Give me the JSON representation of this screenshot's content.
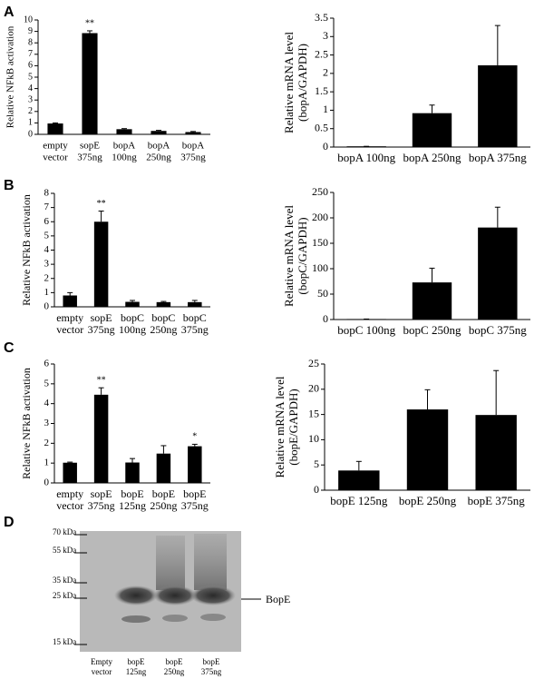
{
  "panels": [
    "A",
    "B",
    "C",
    "D"
  ],
  "chart_data": [
    {
      "type": "bar",
      "ylabel": [
        "Relative NFkB activation"
      ],
      "categories": [
        [
          "empty",
          "vector"
        ],
        [
          "sopE",
          "375ng"
        ],
        [
          "bopA",
          "100ng"
        ],
        [
          "bopA",
          "250ng"
        ],
        [
          "bopA",
          "375ng"
        ]
      ],
      "values": [
        0.95,
        8.85,
        0.45,
        0.3,
        0.2
      ],
      "errors": [
        0.05,
        0.2,
        0.05,
        0.05,
        0.05
      ],
      "significance": [
        null,
        "**",
        null,
        null,
        null
      ],
      "color": "#000000",
      "ylim": [
        0,
        10
      ],
      "yticks": [
        0,
        1,
        2,
        3,
        4,
        5,
        6,
        7,
        8,
        9,
        10
      ]
    },
    {
      "type": "bar",
      "ylabel": [
        "Relative mRNA level",
        "(bopA/GAPDH)"
      ],
      "categories": [
        [
          "bopA 100ng"
        ],
        [
          "bopA 250ng"
        ],
        [
          "bopA 375ng"
        ]
      ],
      "values": [
        0.02,
        0.92,
        2.22
      ],
      "errors": [
        0,
        0.22,
        1.08
      ],
      "color": "#000000",
      "ylim": [
        0,
        3.5
      ],
      "yticks": [
        0,
        0.5,
        1,
        1.5,
        2,
        2.5,
        3,
        3.5
      ]
    },
    {
      "type": "bar",
      "ylabel": [
        "Relative NFkB activation"
      ],
      "categories": [
        [
          "empty",
          "vector"
        ],
        [
          "sopE",
          "375ng"
        ],
        [
          "bopC",
          "100ng"
        ],
        [
          "bopC",
          "250ng"
        ],
        [
          "bopC",
          "375ng"
        ]
      ],
      "values": [
        0.8,
        6.0,
        0.35,
        0.33,
        0.33
      ],
      "errors": [
        0.2,
        0.75,
        0.1,
        0.05,
        0.12
      ],
      "significance": [
        null,
        "**",
        null,
        null,
        null
      ],
      "color": "#000000",
      "ylim": [
        0,
        8
      ],
      "yticks": [
        0,
        1,
        2,
        3,
        4,
        5,
        6,
        7,
        8
      ]
    },
    {
      "type": "bar",
      "ylabel": [
        "Relative mRNA level",
        "(bopC/GAPDH)"
      ],
      "categories": [
        [
          "bopC 100ng"
        ],
        [
          "bopC 250ng"
        ],
        [
          "bopC 375ng"
        ]
      ],
      "values": [
        1,
        73,
        181
      ],
      "errors": [
        0,
        28,
        40
      ],
      "color": "#000000",
      "ylim": [
        0,
        250
      ],
      "yticks": [
        0,
        50,
        100,
        150,
        200,
        250
      ]
    },
    {
      "type": "bar",
      "ylabel": [
        "Relative NFkB activation"
      ],
      "categories": [
        [
          "empty",
          "vector"
        ],
        [
          "sopE",
          "375ng"
        ],
        [
          "bopE",
          "125ng"
        ],
        [
          "bopE",
          "250ng"
        ],
        [
          "bopE",
          "375ng"
        ]
      ],
      "values": [
        1.02,
        4.45,
        1.03,
        1.48,
        1.85
      ],
      "errors": [
        0.03,
        0.35,
        0.2,
        0.4,
        0.1
      ],
      "significance": [
        null,
        "**",
        null,
        null,
        "*"
      ],
      "color": "#000000",
      "ylim": [
        0,
        6
      ],
      "yticks": [
        0,
        1,
        2,
        3,
        4,
        5,
        6
      ]
    },
    {
      "type": "bar",
      "ylabel": [
        "Relative mRNA level",
        "(bopE/GAPDH)"
      ],
      "categories": [
        [
          "bopE 125ng"
        ],
        [
          "bopE 250ng"
        ],
        [
          "bopE 375ng"
        ]
      ],
      "values": [
        3.9,
        16,
        14.9
      ],
      "errors": [
        1.8,
        3.9,
        8.8
      ],
      "color": "#000000",
      "ylim": [
        0,
        25
      ],
      "yticks": [
        0,
        5,
        10,
        15,
        20,
        25
      ]
    }
  ],
  "blot": {
    "markers": [
      "70 kDa",
      "55 kDa",
      "35 kDa",
      "25 kDa",
      "15 kDa"
    ],
    "band_label": "BopE",
    "lanes": [
      [
        "Empty",
        "vector"
      ],
      [
        "bopE",
        "125ng"
      ],
      [
        "bopE",
        "250ng"
      ],
      [
        "bopE",
        "375ng"
      ]
    ]
  }
}
